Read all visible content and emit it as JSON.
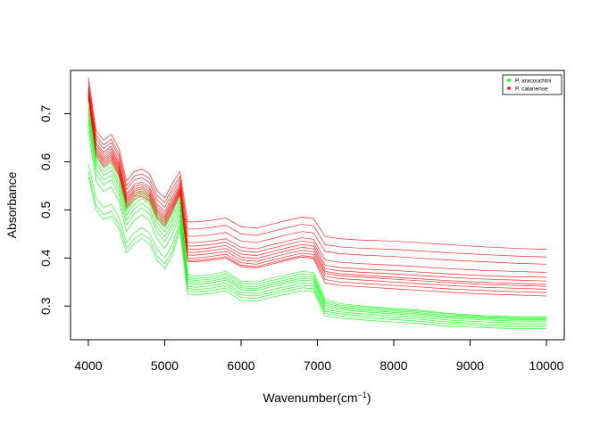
{
  "chart_data": {
    "type": "line",
    "title": "",
    "xlabel": "Wavenumber(cm",
    "xlabel_sup": "−1",
    "xlabel_close": ")",
    "ylabel": "Absorbance",
    "xlim": [
      4000,
      10000
    ],
    "ylim": [
      0.23,
      0.79
    ],
    "xticks": [
      "4000",
      "5000",
      "6000",
      "7000",
      "8000",
      "9000",
      "10000"
    ],
    "yticks": [
      "0.3",
      "0.4",
      "0.5",
      "0.6",
      "0.7"
    ],
    "grid": false,
    "legend_position": "top-right",
    "legend": [
      {
        "label": "P. aracouchini",
        "color": "#00ff00"
      },
      {
        "label": "P. calanense",
        "color": "#ff0000"
      }
    ],
    "x": [
      4000,
      4100,
      4200,
      4300,
      4400,
      4500,
      4600,
      4700,
      4800,
      4900,
      5000,
      5100,
      5200,
      5300,
      5400,
      5600,
      5800,
      6000,
      6200,
      6400,
      6600,
      6800,
      6950,
      7100,
      7300,
      7600,
      8000,
      8300,
      8700,
      9200,
      9600,
      10000
    ],
    "series": [
      {
        "group": "P. calanense",
        "color": "#ff0000",
        "values": [
          0.775,
          0.665,
          0.645,
          0.657,
          0.628,
          0.56,
          0.58,
          0.585,
          0.575,
          0.54,
          0.525,
          0.555,
          0.58,
          0.475,
          0.475,
          0.478,
          0.483,
          0.465,
          0.462,
          0.47,
          0.478,
          0.485,
          0.482,
          0.445,
          0.44,
          0.437,
          0.435,
          0.432,
          0.428,
          0.423,
          0.42,
          0.418
        ]
      },
      {
        "group": "P. calanense",
        "color": "#ff0000",
        "values": [
          0.765,
          0.655,
          0.635,
          0.647,
          0.618,
          0.55,
          0.57,
          0.575,
          0.565,
          0.53,
          0.515,
          0.545,
          0.57,
          0.46,
          0.46,
          0.463,
          0.468,
          0.45,
          0.447,
          0.455,
          0.463,
          0.47,
          0.467,
          0.428,
          0.423,
          0.42,
          0.418,
          0.415,
          0.411,
          0.407,
          0.404,
          0.402
        ]
      },
      {
        "group": "P. calanense",
        "color": "#ff0000",
        "values": [
          0.758,
          0.648,
          0.628,
          0.64,
          0.611,
          0.542,
          0.562,
          0.567,
          0.557,
          0.521,
          0.506,
          0.536,
          0.562,
          0.445,
          0.445,
          0.448,
          0.453,
          0.435,
          0.432,
          0.44,
          0.448,
          0.455,
          0.452,
          0.414,
          0.409,
          0.406,
          0.403,
          0.4,
          0.396,
          0.392,
          0.389,
          0.387
        ]
      },
      {
        "group": "P. calanense",
        "color": "#ff0000",
        "values": [
          0.752,
          0.64,
          0.62,
          0.632,
          0.602,
          0.533,
          0.553,
          0.558,
          0.548,
          0.512,
          0.497,
          0.527,
          0.555,
          0.432,
          0.432,
          0.435,
          0.44,
          0.422,
          0.419,
          0.427,
          0.435,
          0.442,
          0.439,
          0.396,
          0.391,
          0.388,
          0.385,
          0.382,
          0.378,
          0.374,
          0.372,
          0.37
        ]
      },
      {
        "group": "P. calanense",
        "color": "#ff0000",
        "values": [
          0.748,
          0.635,
          0.615,
          0.627,
          0.597,
          0.528,
          0.548,
          0.553,
          0.543,
          0.506,
          0.491,
          0.521,
          0.55,
          0.425,
          0.425,
          0.428,
          0.433,
          0.415,
          0.412,
          0.42,
          0.428,
          0.435,
          0.432,
          0.385,
          0.38,
          0.377,
          0.374,
          0.371,
          0.367,
          0.363,
          0.361,
          0.36
        ]
      },
      {
        "group": "P. calanense",
        "color": "#ff0000",
        "values": [
          0.745,
          0.63,
          0.61,
          0.622,
          0.592,
          0.523,
          0.543,
          0.548,
          0.538,
          0.501,
          0.486,
          0.516,
          0.546,
          0.418,
          0.418,
          0.421,
          0.426,
          0.408,
          0.405,
          0.413,
          0.421,
          0.428,
          0.425,
          0.378,
          0.373,
          0.37,
          0.367,
          0.364,
          0.36,
          0.356,
          0.354,
          0.352
        ]
      },
      {
        "group": "P. calanense",
        "color": "#ff0000",
        "values": [
          0.742,
          0.626,
          0.606,
          0.618,
          0.588,
          0.519,
          0.539,
          0.544,
          0.534,
          0.497,
          0.482,
          0.512,
          0.543,
          0.412,
          0.412,
          0.415,
          0.42,
          0.402,
          0.399,
          0.407,
          0.415,
          0.422,
          0.419,
          0.372,
          0.367,
          0.364,
          0.36,
          0.357,
          0.353,
          0.349,
          0.347,
          0.345
        ]
      },
      {
        "group": "P. calanense",
        "color": "#ff0000",
        "values": [
          0.74,
          0.622,
          0.602,
          0.614,
          0.584,
          0.515,
          0.535,
          0.54,
          0.53,
          0.493,
          0.478,
          0.508,
          0.54,
          0.406,
          0.406,
          0.409,
          0.414,
          0.396,
          0.393,
          0.401,
          0.409,
          0.416,
          0.413,
          0.368,
          0.363,
          0.36,
          0.356,
          0.353,
          0.349,
          0.345,
          0.343,
          0.341
        ]
      },
      {
        "group": "P. calanense",
        "color": "#ff0000",
        "values": [
          0.737,
          0.618,
          0.598,
          0.61,
          0.58,
          0.511,
          0.531,
          0.536,
          0.526,
          0.489,
          0.474,
          0.504,
          0.537,
          0.4,
          0.4,
          0.403,
          0.408,
          0.39,
          0.387,
          0.395,
          0.403,
          0.41,
          0.407,
          0.362,
          0.357,
          0.354,
          0.35,
          0.347,
          0.343,
          0.339,
          0.337,
          0.335
        ]
      },
      {
        "group": "P. calanense",
        "color": "#ff0000",
        "values": [
          0.735,
          0.614,
          0.594,
          0.606,
          0.576,
          0.507,
          0.527,
          0.532,
          0.522,
          0.485,
          0.47,
          0.5,
          0.534,
          0.395,
          0.395,
          0.398,
          0.403,
          0.385,
          0.382,
          0.39,
          0.398,
          0.405,
          0.402,
          0.355,
          0.35,
          0.347,
          0.343,
          0.34,
          0.336,
          0.332,
          0.33,
          0.328
        ]
      },
      {
        "group": "P. calanense",
        "color": "#ff0000",
        "values": [
          0.732,
          0.61,
          0.59,
          0.602,
          0.572,
          0.503,
          0.523,
          0.528,
          0.518,
          0.481,
          0.466,
          0.496,
          0.531,
          0.392,
          0.392,
          0.395,
          0.4,
          0.382,
          0.379,
          0.387,
          0.395,
          0.402,
          0.399,
          0.348,
          0.343,
          0.34,
          0.336,
          0.333,
          0.329,
          0.325,
          0.323,
          0.321
        ]
      },
      {
        "group": "P. aracouchini",
        "color": "#00ff00",
        "values": [
          0.715,
          0.61,
          0.588,
          0.598,
          0.568,
          0.505,
          0.528,
          0.54,
          0.528,
          0.49,
          0.47,
          0.498,
          0.528,
          0.365,
          0.362,
          0.365,
          0.372,
          0.352,
          0.35,
          0.358,
          0.365,
          0.372,
          0.37,
          0.315,
          0.305,
          0.3,
          0.295,
          0.292,
          0.285,
          0.28,
          0.278,
          0.278
        ]
      },
      {
        "group": "P. aracouchini",
        "color": "#00ff00",
        "values": [
          0.708,
          0.602,
          0.58,
          0.59,
          0.56,
          0.497,
          0.52,
          0.532,
          0.52,
          0.482,
          0.462,
          0.49,
          0.522,
          0.36,
          0.357,
          0.36,
          0.367,
          0.347,
          0.345,
          0.353,
          0.36,
          0.367,
          0.365,
          0.31,
          0.302,
          0.297,
          0.293,
          0.29,
          0.283,
          0.278,
          0.276,
          0.276
        ]
      },
      {
        "group": "P. aracouchini",
        "color": "#00ff00",
        "values": [
          0.7,
          0.595,
          0.572,
          0.582,
          0.552,
          0.489,
          0.512,
          0.524,
          0.512,
          0.474,
          0.454,
          0.482,
          0.516,
          0.356,
          0.353,
          0.356,
          0.362,
          0.342,
          0.34,
          0.348,
          0.355,
          0.362,
          0.36,
          0.306,
          0.299,
          0.294,
          0.29,
          0.287,
          0.28,
          0.276,
          0.274,
          0.274
        ]
      },
      {
        "group": "P. aracouchini",
        "color": "#00ff00",
        "values": [
          0.69,
          0.585,
          0.562,
          0.572,
          0.542,
          0.479,
          0.502,
          0.514,
          0.502,
          0.464,
          0.444,
          0.472,
          0.508,
          0.352,
          0.349,
          0.352,
          0.358,
          0.338,
          0.336,
          0.344,
          0.351,
          0.358,
          0.356,
          0.302,
          0.296,
          0.291,
          0.287,
          0.284,
          0.278,
          0.274,
          0.272,
          0.272
        ]
      },
      {
        "group": "P. aracouchini",
        "color": "#00ff00",
        "values": [
          0.68,
          0.575,
          0.552,
          0.562,
          0.532,
          0.469,
          0.492,
          0.504,
          0.492,
          0.454,
          0.434,
          0.462,
          0.5,
          0.348,
          0.345,
          0.348,
          0.354,
          0.334,
          0.332,
          0.34,
          0.347,
          0.354,
          0.352,
          0.298,
          0.293,
          0.288,
          0.284,
          0.281,
          0.275,
          0.271,
          0.269,
          0.269
        ]
      },
      {
        "group": "P. aracouchini",
        "color": "#00ff00",
        "values": [
          0.665,
          0.56,
          0.538,
          0.548,
          0.518,
          0.455,
          0.478,
          0.49,
          0.478,
          0.44,
          0.42,
          0.448,
          0.49,
          0.342,
          0.339,
          0.342,
          0.348,
          0.328,
          0.326,
          0.334,
          0.341,
          0.348,
          0.346,
          0.293,
          0.288,
          0.284,
          0.28,
          0.277,
          0.271,
          0.267,
          0.265,
          0.265
        ]
      },
      {
        "group": "P. aracouchini",
        "color": "#00ff00",
        "values": [
          0.595,
          0.525,
          0.505,
          0.512,
          0.485,
          0.432,
          0.452,
          0.463,
          0.452,
          0.418,
          0.4,
          0.428,
          0.478,
          0.337,
          0.334,
          0.337,
          0.343,
          0.323,
          0.321,
          0.329,
          0.336,
          0.343,
          0.341,
          0.289,
          0.284,
          0.28,
          0.276,
          0.273,
          0.267,
          0.263,
          0.261,
          0.261
        ]
      },
      {
        "group": "P. aracouchini",
        "color": "#00ff00",
        "values": [
          0.58,
          0.51,
          0.49,
          0.497,
          0.47,
          0.42,
          0.44,
          0.45,
          0.44,
          0.405,
          0.388,
          0.415,
          0.468,
          0.332,
          0.329,
          0.332,
          0.338,
          0.318,
          0.316,
          0.324,
          0.331,
          0.338,
          0.336,
          0.285,
          0.28,
          0.276,
          0.272,
          0.269,
          0.263,
          0.259,
          0.257,
          0.257
        ]
      },
      {
        "group": "P. aracouchini",
        "color": "#00ff00",
        "values": [
          0.57,
          0.5,
          0.48,
          0.487,
          0.46,
          0.41,
          0.43,
          0.44,
          0.43,
          0.395,
          0.378,
          0.405,
          0.46,
          0.326,
          0.323,
          0.326,
          0.332,
          0.312,
          0.31,
          0.318,
          0.325,
          0.332,
          0.33,
          0.28,
          0.275,
          0.271,
          0.267,
          0.264,
          0.258,
          0.255,
          0.253,
          0.253
        ]
      }
    ]
  }
}
